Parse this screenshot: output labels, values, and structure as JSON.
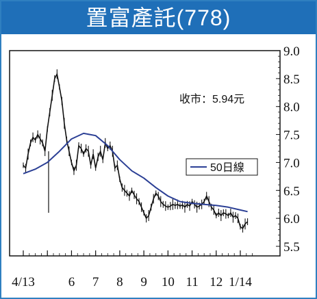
{
  "header": {
    "title": "置富產託(778)"
  },
  "chart_data": {
    "type": "line",
    "title": "置富產託(778)",
    "annotation": "收市：5.94元",
    "ylim": [
      5.5,
      9.0
    ],
    "yticks": [
      "9.0",
      "8.5",
      "8.0",
      "7.5",
      "7.0",
      "6.5",
      "6.0",
      "5.5"
    ],
    "grid": false,
    "legend_position": "middle-right",
    "months": [
      {
        "label": "4/13",
        "x": 0
      },
      {
        "label": "6",
        "x": 2
      },
      {
        "label": "7",
        "x": 3
      },
      {
        "label": "8",
        "x": 4
      },
      {
        "label": "9",
        "x": 5
      },
      {
        "label": "10",
        "x": 6
      },
      {
        "label": "11",
        "x": 7
      },
      {
        "label": "12",
        "x": 8
      },
      {
        "label": "1/14",
        "x": 9
      }
    ],
    "series": [
      {
        "name": "",
        "color": "#111111",
        "style": "daily-bars",
        "x": [
          0,
          0.1,
          0.2,
          0.3,
          0.4,
          0.5,
          0.6,
          0.7,
          0.8,
          0.9,
          1.0,
          1.1,
          1.2,
          1.3,
          1.4,
          1.5,
          1.6,
          1.7,
          1.8,
          1.9,
          2.0,
          2.1,
          2.2,
          2.3,
          2.4,
          2.5,
          2.6,
          2.7,
          2.8,
          2.9,
          3.0,
          3.1,
          3.2,
          3.3,
          3.4,
          3.5,
          3.6,
          3.7,
          3.8,
          3.9,
          4.0,
          4.1,
          4.2,
          4.3,
          4.4,
          4.5,
          4.6,
          4.7,
          4.8,
          4.9,
          5.0,
          5.1,
          5.2,
          5.3,
          5.4,
          5.5,
          5.6,
          5.7,
          5.8,
          5.9,
          6.0,
          6.1,
          6.2,
          6.3,
          6.4,
          6.5,
          6.6,
          6.7,
          6.8,
          6.9,
          7.0,
          7.1,
          7.2,
          7.3,
          7.4,
          7.5,
          7.6,
          7.7,
          7.8,
          7.9,
          8.0,
          8.1,
          8.2,
          8.3,
          8.4,
          8.5,
          8.6,
          8.7,
          8.8,
          8.9,
          9.0,
          9.1,
          9.2,
          9.3
        ],
        "values": [
          6.95,
          6.9,
          7.15,
          7.35,
          7.45,
          7.4,
          7.5,
          7.42,
          7.35,
          7.2,
          7.6,
          7.9,
          8.2,
          8.5,
          8.58,
          8.35,
          8.1,
          7.7,
          7.4,
          7.2,
          7.0,
          6.85,
          6.95,
          7.3,
          7.25,
          7.15,
          7.25,
          7.2,
          6.95,
          7.15,
          6.9,
          7.1,
          7.2,
          7.05,
          7.35,
          7.25,
          7.3,
          7.2,
          6.9,
          6.95,
          6.7,
          6.55,
          6.5,
          6.45,
          6.4,
          6.5,
          6.42,
          6.35,
          6.3,
          6.2,
          6.1,
          6.0,
          6.05,
          6.2,
          6.35,
          6.45,
          6.4,
          6.3,
          6.25,
          6.22,
          6.2,
          6.22,
          6.25,
          6.23,
          6.25,
          6.22,
          6.24,
          6.2,
          6.25,
          6.22,
          6.3,
          6.25,
          6.2,
          6.22,
          6.25,
          6.3,
          6.4,
          6.3,
          6.2,
          6.15,
          6.05,
          6.1,
          6.05,
          6.1,
          6.08,
          6.05,
          6.1,
          6.02,
          6.05,
          6.0,
          5.85,
          5.82,
          5.9,
          5.94
        ]
      },
      {
        "name": "50日線",
        "color": "#2b3f95",
        "style": "line",
        "x": [
          0,
          0.5,
          1.0,
          1.5,
          2.0,
          2.5,
          3.0,
          3.5,
          4.0,
          4.5,
          5.0,
          5.5,
          6.0,
          6.5,
          7.0,
          7.5,
          8.0,
          8.5,
          9.0,
          9.3
        ],
        "values": [
          6.8,
          6.88,
          7.0,
          7.2,
          7.42,
          7.52,
          7.48,
          7.3,
          7.05,
          6.85,
          6.72,
          6.55,
          6.4,
          6.3,
          6.27,
          6.25,
          6.23,
          6.2,
          6.15,
          6.12
        ]
      }
    ],
    "ref_lines": [
      {
        "label": "",
        "x": 1.05,
        "from": 7.2,
        "to": 6.1
      }
    ]
  }
}
